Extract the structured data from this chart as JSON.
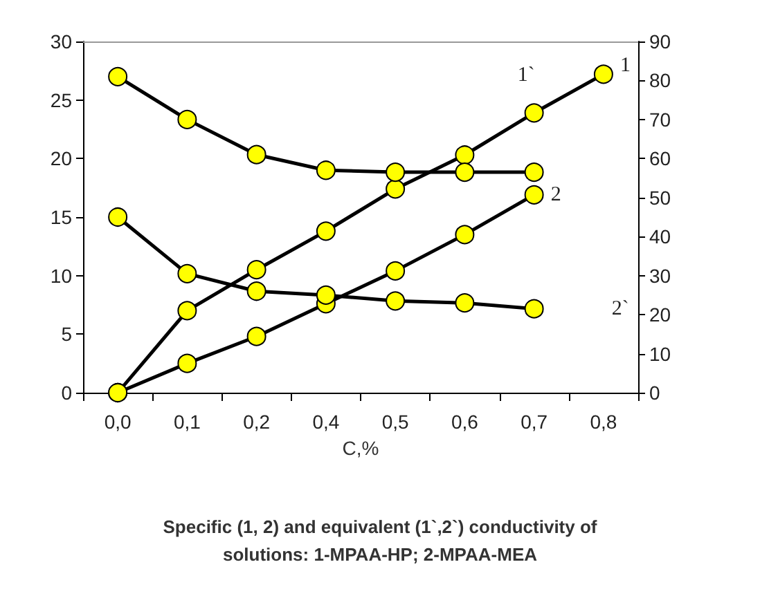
{
  "chart_data": {
    "type": "line",
    "title": "Specific (1, 2) and equivalent (1`,2`) conductivity of\nsolutions: 1-MPAA-HP; 2-MPAA-MEA",
    "xlabel": "C,%",
    "categories": [
      "0,0",
      "0,1",
      "0,2",
      "0,4",
      "0,5",
      "0,6",
      "0,7",
      "0,8"
    ],
    "series": [
      {
        "name": "1",
        "color": "#000000",
        "values": [
          0,
          7,
          10.5,
          13.8,
          17.4,
          20.3,
          23.9,
          27.2
        ]
      },
      {
        "name": "2",
        "color": "#000000",
        "values": [
          0,
          2.5,
          4.8,
          7.6,
          10.4,
          13.5,
          16.9,
          null
        ]
      },
      {
        "name": "1`",
        "color": "#000000",
        "axis": "y2",
        "values": [
          81,
          70,
          61,
          57,
          56.5,
          56.5,
          56.5,
          null
        ]
      },
      {
        "name": "2`",
        "color": "#000000",
        "axis": "y2",
        "values": [
          45,
          30.5,
          26,
          25,
          23.5,
          23,
          21.5,
          null
        ]
      }
    ],
    "ylim": [
      0,
      30
    ],
    "yticks": [
      0,
      5,
      10,
      15,
      20,
      25,
      30
    ],
    "y2lim": [
      0,
      90
    ],
    "y2ticks": [
      0,
      10,
      20,
      30,
      40,
      50,
      60,
      70,
      80,
      90
    ],
    "grid": false,
    "legend": false,
    "marker": "circle",
    "line_style": "solid"
  }
}
